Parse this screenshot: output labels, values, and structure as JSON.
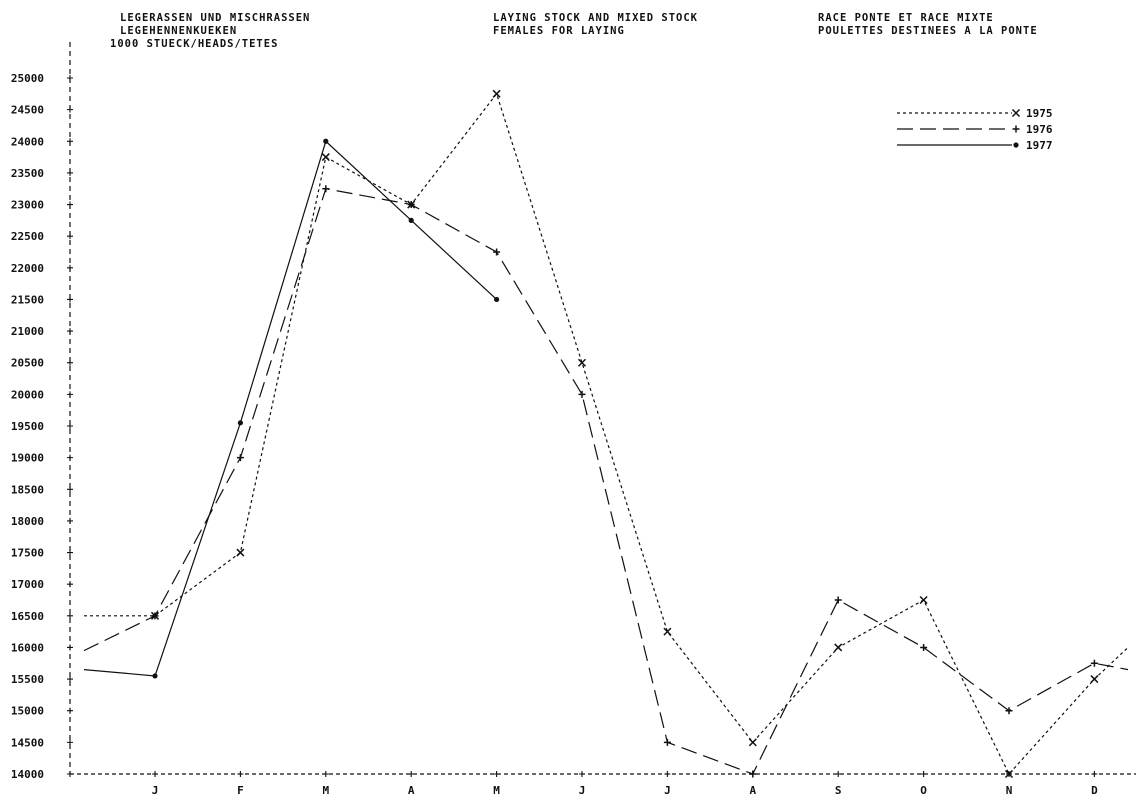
{
  "header": {
    "de_line1": "LEGERASSEN UND MISCHRASSEN",
    "de_line2": "LEGEHENNENKUEKEN",
    "unit": "1000 STUECK/HEADS/TETES",
    "en_line1": "LAYING STOCK AND MIXED STOCK",
    "en_line2": "FEMALES FOR LAYING",
    "fr_line1": "RACE PONTE ET RACE MIXTE",
    "fr_line2": "POULETTES DESTINEES A LA PONTE"
  },
  "chart_data": {
    "type": "line",
    "title": "",
    "xlabel": "",
    "ylabel": "1000 STUECK/HEADS/TETES",
    "ylim": [
      14000,
      25000
    ],
    "yticks": [
      14000,
      14500,
      15000,
      15500,
      16000,
      16500,
      17000,
      17500,
      18000,
      18500,
      19000,
      19500,
      20000,
      20500,
      21000,
      21500,
      22000,
      22500,
      23000,
      23500,
      24000,
      24500,
      25000
    ],
    "categories": [
      "J",
      "F",
      "M",
      "A",
      "M",
      "J",
      "J",
      "A",
      "S",
      "O",
      "N",
      "D"
    ],
    "grid": false,
    "legend_position": "top-right",
    "series": [
      {
        "name": "1975",
        "style": "dotted",
        "marker": "x",
        "start": 16500,
        "values": [
          16500,
          17500,
          23750,
          23000,
          24750,
          20500,
          16250,
          14500,
          16000,
          16750,
          14000,
          15500
        ],
        "end": 16000
      },
      {
        "name": "1976",
        "style": "dashed",
        "marker": "+",
        "start": 15950,
        "values": [
          16500,
          19000,
          23250,
          23000,
          22250,
          20000,
          14500,
          14000,
          16750,
          16000,
          15000,
          15750
        ],
        "end": 15650
      },
      {
        "name": "1977",
        "style": "solid",
        "marker": "*",
        "start": 15650,
        "values": [
          15550,
          19550,
          24000,
          22750,
          21500,
          null,
          null,
          null,
          null,
          null,
          null,
          null
        ]
      }
    ]
  }
}
